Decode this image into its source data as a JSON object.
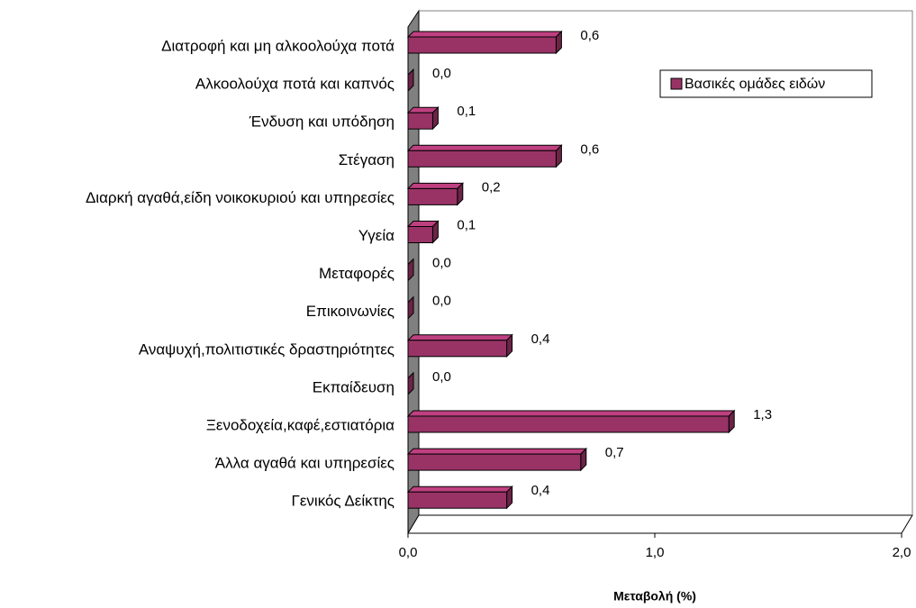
{
  "chart_data": {
    "type": "bar3d_horizontal",
    "x_label": "Μεταβολή (%)",
    "categories": [
      "Διατροφή και μη αλκοολούχα ποτά",
      "Αλκοολούχα ποτά και καπνός",
      "Ένδυση και υπόδηση",
      "Στέγαση",
      "Διαρκή αγαθά,είδη νοικοκυριού και υπηρεσίες",
      "Υγεία",
      "Μεταφορές",
      "Επικοινωνίες",
      "Αναψυχή,πολιτιστικές δραστηριότητες",
      "Εκπαίδευση",
      "Ξενοδοχεία,καφέ,εστιατόρια",
      "Άλλα αγαθά και υπηρεσίες",
      "Γενικός Δείκτης"
    ],
    "series": [
      {
        "name": "Βασικές ομάδες ειδών",
        "color": "#993366",
        "values": [
          0.6,
          0.0,
          0.1,
          0.6,
          0.2,
          0.1,
          0.0,
          0.0,
          0.4,
          0.0,
          1.3,
          0.7,
          0.4
        ],
        "value_labels": [
          "0,6",
          "0,0",
          "0,1",
          "0,6",
          "0,2",
          "0,1",
          "0,0",
          "0,0",
          "0,4",
          "0,0",
          "1,3",
          "0,7",
          "0,4"
        ]
      }
    ],
    "xlim": [
      0,
      2
    ],
    "xticks": [
      {
        "value": 0,
        "label": "0,0"
      },
      {
        "value": 1,
        "label": "1,0"
      },
      {
        "value": 2,
        "label": "2,0"
      }
    ],
    "legend": "upper right"
  }
}
